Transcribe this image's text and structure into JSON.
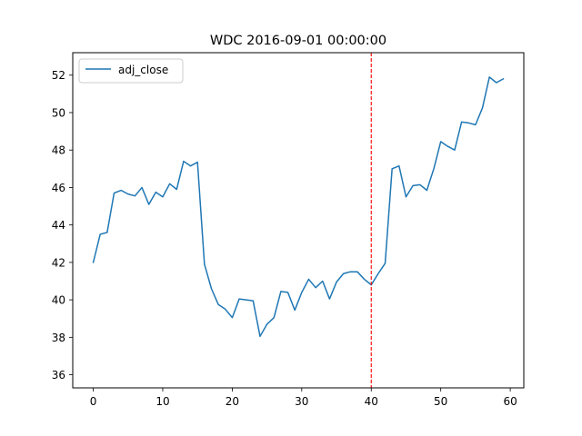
{
  "chart_data": {
    "type": "line",
    "title": "WDC 2016-09-01 00:00:00",
    "xlabel": "",
    "ylabel": "",
    "xlim": [
      -2.95,
      61.95
    ],
    "ylim": [
      35.3,
      53.2
    ],
    "xticks": [
      0,
      10,
      20,
      30,
      40,
      50,
      60
    ],
    "yticks": [
      36,
      38,
      40,
      42,
      44,
      46,
      48,
      50,
      52
    ],
    "grid": false,
    "legend_position": "upper left",
    "series": [
      {
        "name": "adj_close",
        "color": "#1f77b4",
        "x": [
          0,
          1,
          2,
          3,
          4,
          5,
          6,
          7,
          8,
          9,
          10,
          11,
          12,
          13,
          14,
          15,
          16,
          17,
          18,
          19,
          20,
          21,
          22,
          23,
          24,
          25,
          26,
          27,
          28,
          29,
          30,
          31,
          32,
          33,
          34,
          35,
          36,
          37,
          38,
          39,
          40,
          41,
          42,
          43,
          44,
          45,
          46,
          47,
          48,
          49,
          50,
          51,
          52,
          53,
          54,
          55,
          56,
          57,
          58,
          59
        ],
        "values": [
          42.0,
          43.5,
          43.6,
          45.7,
          45.85,
          45.65,
          45.55,
          46.0,
          45.1,
          45.75,
          45.5,
          46.2,
          45.9,
          47.4,
          47.15,
          47.35,
          41.9,
          40.6,
          39.75,
          39.5,
          39.05,
          40.05,
          40.0,
          39.95,
          38.05,
          38.7,
          39.05,
          40.45,
          40.4,
          39.45,
          40.4,
          41.1,
          40.65,
          41.0,
          40.05,
          40.95,
          41.4,
          41.5,
          41.5,
          41.1,
          40.8,
          41.4,
          41.95,
          47.0,
          47.15,
          45.5,
          46.1,
          46.15,
          45.85,
          47.0,
          48.45,
          48.2,
          48.0,
          49.5,
          49.45,
          49.35,
          50.25,
          51.9,
          51.6,
          51.8
        ]
      }
    ],
    "annotations": [
      {
        "type": "vline",
        "x": 40,
        "color": "#ff0000",
        "style": "dashed"
      }
    ]
  }
}
